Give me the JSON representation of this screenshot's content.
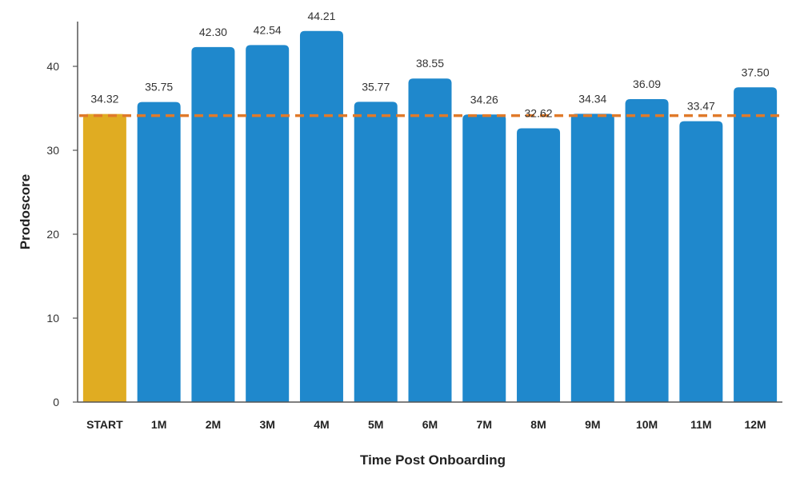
{
  "chart_data": {
    "type": "bar",
    "title": "",
    "xlabel": "Time Post Onboarding",
    "ylabel": "Prodoscore",
    "categories": [
      "START",
      "1M",
      "2M",
      "3M",
      "4M",
      "5M",
      "6M",
      "7M",
      "8M",
      "9M",
      "10M",
      "11M",
      "12M"
    ],
    "values": [
      34.32,
      35.75,
      42.3,
      42.54,
      44.21,
      35.77,
      38.55,
      34.26,
      32.62,
      34.34,
      36.09,
      33.47,
      37.5
    ],
    "value_labels": [
      "34.32",
      "35.75",
      "42.30",
      "42.54",
      "44.21",
      "35.77",
      "38.55",
      "34.26",
      "32.62",
      "34.34",
      "36.09",
      "33.47",
      "37.50"
    ],
    "yticks": [
      0,
      10,
      20,
      30,
      40
    ],
    "ylim": [
      0,
      45
    ],
    "reference_line": {
      "value": 34.32,
      "style": "dashed"
    },
    "grid": false,
    "legend": "none",
    "colors": {
      "baseline_bar": "#E0AC22",
      "bar": "#1F88CC",
      "reference_line": "#E07A2A",
      "axis": "#555555"
    }
  }
}
